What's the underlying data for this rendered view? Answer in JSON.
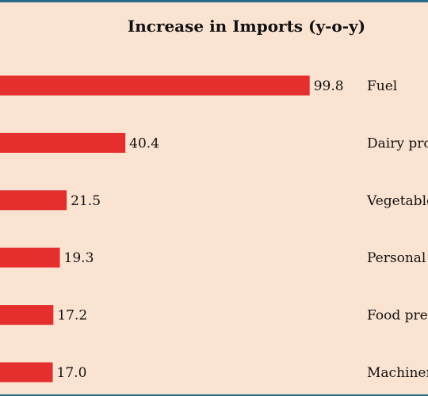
{
  "chart_data": {
    "type": "bar",
    "orientation": "horizontal",
    "title": "Increase in Imports (y-o-y)",
    "categories": [
      "Fuel",
      "Dairy products",
      "Vegetables",
      "Personal w",
      "Food prep",
      "Machinery"
    ],
    "category_labels_visible": [
      "Fuel",
      "Dairy proc",
      "Vegetable",
      "Personal w",
      "Food prep",
      "Machinery"
    ],
    "values": [
      99.8,
      40.4,
      21.5,
      19.3,
      17.2,
      17.0
    ],
    "value_labels": [
      "99.8",
      "40.4",
      "21.5",
      "19.3",
      "17.2",
      "17.0"
    ],
    "xlabel": "",
    "ylabel": "",
    "grid": false,
    "legend": "none",
    "bar_color": "#e52f2f"
  },
  "colors": {
    "background": "#fbe3d2",
    "border": "#2a6b8a",
    "text": "#111111"
  }
}
